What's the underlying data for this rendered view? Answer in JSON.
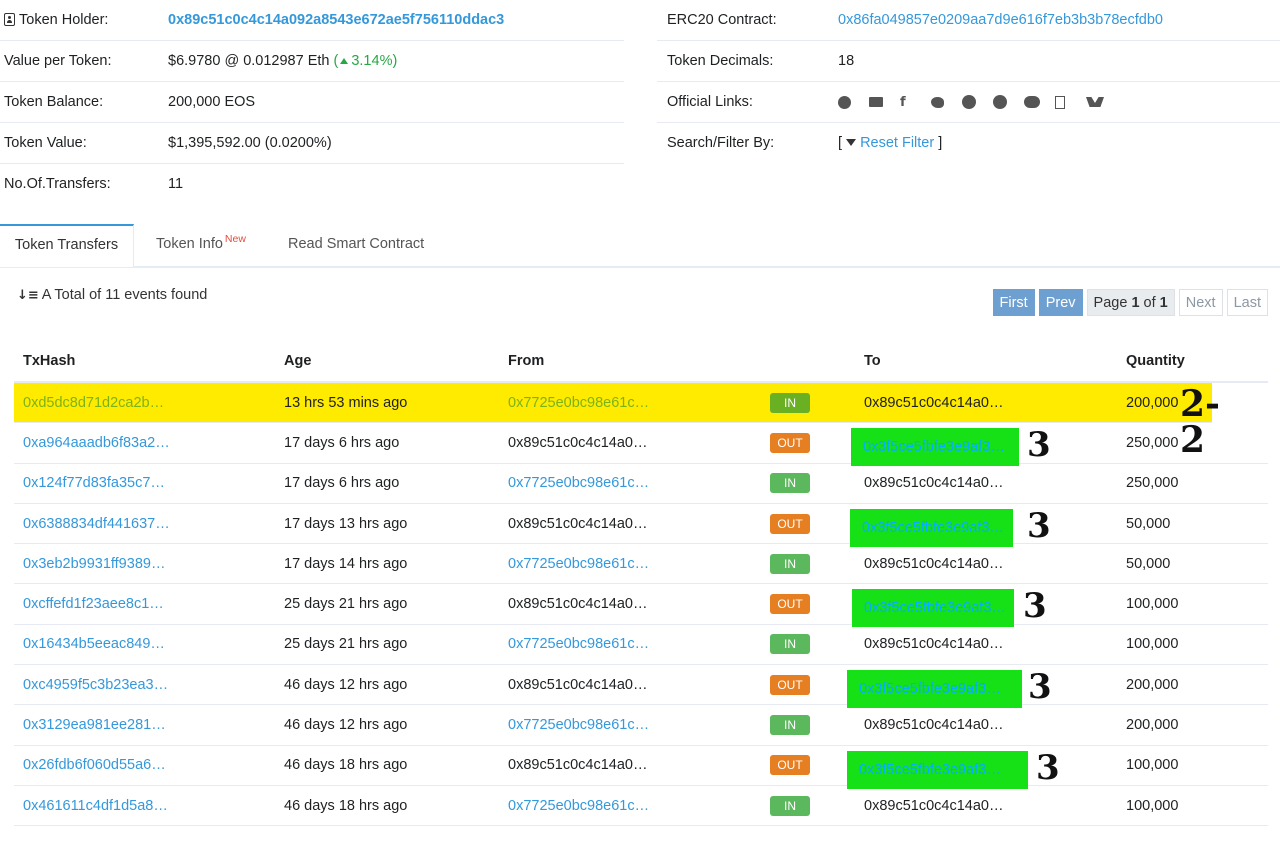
{
  "overview": {
    "token_holder_label": "Token Holder:",
    "token_holder_value": "0x89c51c0c4c14a092a8543e672ae5f756110ddac3",
    "value_per_token_label": "Value per Token:",
    "value_per_token_value": "$6.9780 @ 0.012987 Eth",
    "value_change_open": "(",
    "value_change": "3.14%)",
    "token_balance_label": "Token Balance:",
    "token_balance_value": "200,000 EOS",
    "token_value_label": "Token Value:",
    "token_value_value": "$1,395,592.00 (0.0200%)",
    "transfers_label": "No.Of.Transfers:",
    "transfers_value": "11"
  },
  "contract": {
    "erc20_label": "ERC20 Contract:",
    "erc20_value": "0x86fa049857e0209aa7d9e616f7eb3b3b78ecfdb0",
    "decimals_label": "Token Decimals:",
    "decimals_value": "18",
    "links_label": "Official Links:",
    "links_icons": [
      "globe-icon",
      "mail-icon",
      "facebook-icon",
      "twitter-icon",
      "github-icon",
      "telegram-icon",
      "wechat-icon",
      "document-icon",
      "eos-brand-icon"
    ],
    "filter_label": "Search/Filter By:",
    "filter_open": "[",
    "filter_link": "Reset Filter",
    "filter_close": "]"
  },
  "tabs": [
    {
      "label": "Token Transfers",
      "active": true
    },
    {
      "label": "Token Info",
      "badge": "New"
    },
    {
      "label": "Read Smart Contract"
    }
  ],
  "summary": {
    "total_text": "A Total of 11 events found"
  },
  "pager": {
    "first": "First",
    "prev": "Prev",
    "page_prefix": "Page",
    "page_current": "1",
    "page_of": "of",
    "page_total": "1",
    "next": "Next",
    "last": "Last"
  },
  "table": {
    "headers": [
      "TxHash",
      "Age",
      "From",
      "",
      "To",
      "Quantity"
    ],
    "rows": [
      {
        "tx": "0xd5dc8d71d2ca2b…",
        "age": "13 hrs 53 mins ago",
        "from": "0x7725e0bc98e61c…",
        "dir": "IN",
        "to": "0x89c51c0c4c14a0…",
        "qty": "200,000"
      },
      {
        "tx": "0xa964aaadb6f83a2…",
        "age": "17 days 6 hrs ago",
        "from": "0x89c51c0c4c14a0…",
        "dir": "OUT",
        "to": "0x3f5ce5fbfe3e9af3…",
        "qty": "250,000"
      },
      {
        "tx": "0x124f77d83fa35c7…",
        "age": "17 days 6 hrs ago",
        "from": "0x7725e0bc98e61c…",
        "dir": "IN",
        "to": "0x89c51c0c4c14a0…",
        "qty": "250,000"
      },
      {
        "tx": "0x6388834df441637…",
        "age": "17 days 13 hrs ago",
        "from": "0x89c51c0c4c14a0…",
        "dir": "OUT",
        "to": "0x3f5ce5fbfe3e9af3…",
        "qty": "50,000"
      },
      {
        "tx": "0x3eb2b9931ff9389…",
        "age": "17 days 14 hrs ago",
        "from": "0x7725e0bc98e61c…",
        "dir": "IN",
        "to": "0x89c51c0c4c14a0…",
        "qty": "50,000"
      },
      {
        "tx": "0xcffefd1f23aee8c1…",
        "age": "25 days 21 hrs ago",
        "from": "0x89c51c0c4c14a0…",
        "dir": "OUT",
        "to": "0x3f5ce5fbfe3e9af3…",
        "qty": "100,000"
      },
      {
        "tx": "0x16434b5eeac849…",
        "age": "25 days 21 hrs ago",
        "from": "0x7725e0bc98e61c…",
        "dir": "IN",
        "to": "0x89c51c0c4c14a0…",
        "qty": "100,000"
      },
      {
        "tx": "0xc4959f5c3b23ea3…",
        "age": "46 days 12 hrs ago",
        "from": "0x89c51c0c4c14a0…",
        "dir": "OUT",
        "to": "0x3f5ce5fbfe3e9af3…",
        "qty": "200,000"
      },
      {
        "tx": "0x3129ea981ee281…",
        "age": "46 days 12 hrs ago",
        "from": "0x7725e0bc98e61c…",
        "dir": "IN",
        "to": "0x89c51c0c4c14a0…",
        "qty": "200,000"
      },
      {
        "tx": "0x26fdb6f060d55a6…",
        "age": "46 days 18 hrs ago",
        "from": "0x89c51c0c4c14a0…",
        "dir": "OUT",
        "to": "0x3f5ce5fbfe3e9af3…",
        "qty": "100,000"
      },
      {
        "tx": "0x461611c4df1d5a8…",
        "age": "46 days 18 hrs ago",
        "from": "0x7725e0bc98e61c…",
        "dir": "IN",
        "to": "0x89c51c0c4c14a0…",
        "qty": "100,000"
      }
    ]
  },
  "annotations": {
    "highlight_row_color": "#ffeb00",
    "highlight_to_color": "#16e016",
    "first_row_note": "2-2",
    "out_row_note": "3"
  }
}
